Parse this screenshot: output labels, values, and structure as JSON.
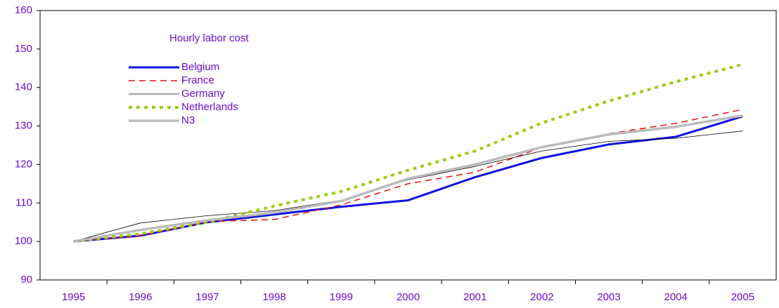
{
  "chart_data": {
    "type": "line",
    "legend_title": "Hourly labor cost",
    "categories": [
      "1995",
      "1996",
      "1997",
      "1998",
      "1999",
      "2000",
      "2001",
      "2002",
      "2003",
      "2004",
      "2005"
    ],
    "series": [
      {
        "name": "Belgium",
        "color": "#1010e0",
        "width": 3,
        "dash": "none",
        "values": [
          100,
          101.5,
          105,
          107,
          109,
          110.7,
          116.7,
          121.7,
          125.2,
          127.2,
          132.5
        ]
      },
      {
        "name": "France",
        "color": "#e81010",
        "width": 1.5,
        "dash": "9 6",
        "values": [
          100,
          101.5,
          105.2,
          105.7,
          109.5,
          115,
          118,
          124.5,
          128,
          130.7,
          134.3
        ]
      },
      {
        "name": "Germany",
        "color": "#000000",
        "width": 0.8,
        "dash": "none",
        "values": [
          100,
          104.8,
          106.7,
          108,
          110.7,
          116,
          119.5,
          123.5,
          126,
          126.8,
          128.7
        ]
      },
      {
        "name": "Netherlands",
        "color": "#9acd12",
        "width": 4,
        "dash": "5 6",
        "values": [
          100,
          102,
          105,
          109.2,
          113,
          118.5,
          123.5,
          130.8,
          136.5,
          141.5,
          146
        ]
      },
      {
        "name": "N3",
        "color": "#bbbbbb",
        "width": 3.5,
        "dash": "none",
        "values": [
          100,
          103,
          105.5,
          107.5,
          110.5,
          116.3,
          120,
          124.5,
          127.8,
          129.8,
          132.7
        ]
      }
    ],
    "ylim": [
      90,
      160
    ],
    "yticks": [
      90,
      100,
      110,
      120,
      130,
      140,
      150,
      160
    ]
  }
}
